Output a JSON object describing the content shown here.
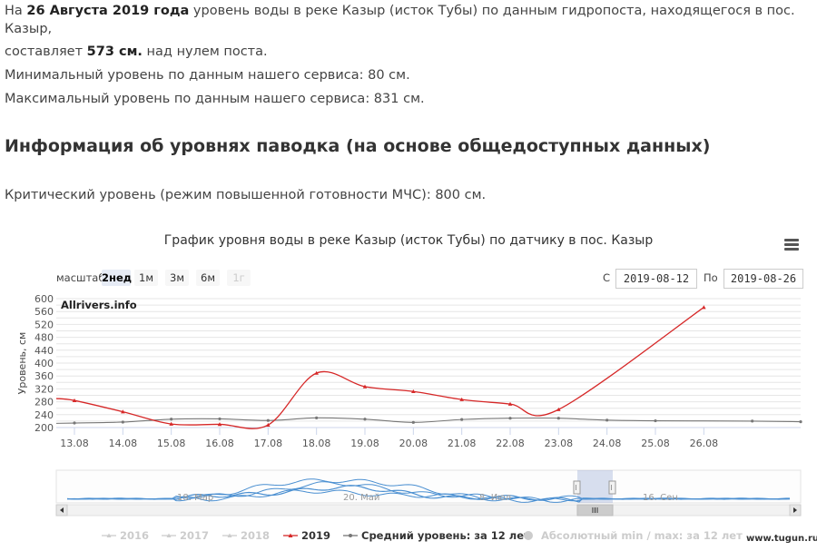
{
  "intro": {
    "part1": "На ",
    "date_bold": "26 Августа 2019 года",
    "part2": " уровень воды в реке Казыр (исток Тубы) по данным гидропоста, находящегося в пос. Казыр,",
    "part3": "составляет ",
    "level_bold": "573 см.",
    "part4": " над нулем поста."
  },
  "min_text": "Минимальный уровень по данным нашего сервиса: 80 см.",
  "max_text": "Максимальный уровень по данным нашего сервиса: 831 см.",
  "flood_heading": "Информация об уровнях паводка (на основе общедоступных данных)",
  "critical_text": "Критический уровень (режим повышенной готовности МЧС): 800 см.",
  "range_selector": {
    "label": "масштаб",
    "buttons": [
      {
        "label": "2нед",
        "state": "active"
      },
      {
        "label": "1м",
        "state": "normal"
      },
      {
        "label": "3м",
        "state": "normal"
      },
      {
        "label": "6м",
        "state": "normal"
      },
      {
        "label": "1г",
        "state": "disabled"
      }
    ],
    "from_label": "С",
    "from_value": "2019-08-12",
    "to_label": "По",
    "to_value": "2019-08-26"
  },
  "credit": "Allrivers.info",
  "watermark": "www.tugun.ru",
  "colors": {
    "series_2019": "#d62828",
    "series_avg": "#777777",
    "inactive": "#cccccc",
    "navigator_line": "#4a8fd1",
    "grid": "#e6e6e6"
  },
  "chart_data": {
    "type": "line",
    "title": "График уровня воды в реке Казыр (исток Тубы) по датчику в пос. Казыр",
    "ylabel": "Уровень, см",
    "ylim": [
      200,
      600
    ],
    "yticks": [
      200,
      240,
      280,
      320,
      360,
      400,
      440,
      480,
      520,
      560,
      600
    ],
    "yticks_extra": [
      220,
      260,
      300,
      340,
      380,
      420,
      460,
      500,
      540,
      580
    ],
    "x_range": [
      "2019-08-12T15:00",
      "2019-08-28T00:00"
    ],
    "xtick_labels": [
      "13.08",
      "14.08",
      "15.08",
      "16.08",
      "17.08",
      "18.08",
      "19.08",
      "20.08",
      "21.08",
      "22.08",
      "23.08",
      "24.08",
      "25.08",
      "26.08"
    ],
    "series": [
      {
        "name": "2019",
        "marker": "triangle",
        "points": [
          [
            "2019-08-12T15:00",
            290
          ],
          [
            "2019-08-13T00:00",
            284
          ],
          [
            "2019-08-14T00:00",
            249
          ],
          [
            "2019-08-15T00:00",
            211
          ],
          [
            "2019-08-16T00:00",
            210
          ],
          [
            "2019-08-17T00:00",
            208
          ],
          [
            "2019-08-18T00:00",
            369
          ],
          [
            "2019-08-19T00:00",
            327
          ],
          [
            "2019-08-20T00:00",
            312
          ],
          [
            "2019-08-21T00:00",
            287
          ],
          [
            "2019-08-22T00:00",
            273
          ],
          [
            "2019-08-23T00:00",
            256
          ],
          [
            "2019-08-26T00:00",
            573
          ]
        ]
      },
      {
        "name": "Средний уровень: за 12 лет",
        "marker": "circle",
        "points": [
          [
            "2019-08-12T15:00",
            213
          ],
          [
            "2019-08-13T00:00",
            214
          ],
          [
            "2019-08-14T00:00",
            217
          ],
          [
            "2019-08-15T00:00",
            226
          ],
          [
            "2019-08-16T00:00",
            227
          ],
          [
            "2019-08-17T00:00",
            222
          ],
          [
            "2019-08-18T00:00",
            230
          ],
          [
            "2019-08-19T00:00",
            226
          ],
          [
            "2019-08-20T00:00",
            216
          ],
          [
            "2019-08-21T00:00",
            225
          ],
          [
            "2019-08-22T00:00",
            229
          ],
          [
            "2019-08-23T00:00",
            229
          ],
          [
            "2019-08-24T00:00",
            223
          ],
          [
            "2019-08-25T00:00",
            221
          ],
          [
            "2019-08-27T00:00",
            220
          ],
          [
            "2019-08-28T00:00",
            218
          ]
        ]
      }
    ],
    "navigator": {
      "labels": [
        "18. Мар",
        "20. Май",
        "8. Июл",
        "16. Сен"
      ],
      "selected_range": [
        "2019-08-12",
        "2019-08-26"
      ]
    },
    "legend": {
      "placement": "bottom",
      "items": [
        {
          "label": "2016",
          "active": false,
          "marker": "triangle"
        },
        {
          "label": "2017",
          "active": false,
          "marker": "triangle"
        },
        {
          "label": "2018",
          "active": false,
          "marker": "triangle"
        },
        {
          "label": "2019",
          "active": true,
          "marker": "triangle"
        },
        {
          "label": "Средний уровень: за 12 лет",
          "active": true,
          "marker": "circle"
        },
        {
          "label": "Абсолютный min / max: за 12 лет",
          "active": false,
          "marker": "dot"
        }
      ]
    }
  }
}
